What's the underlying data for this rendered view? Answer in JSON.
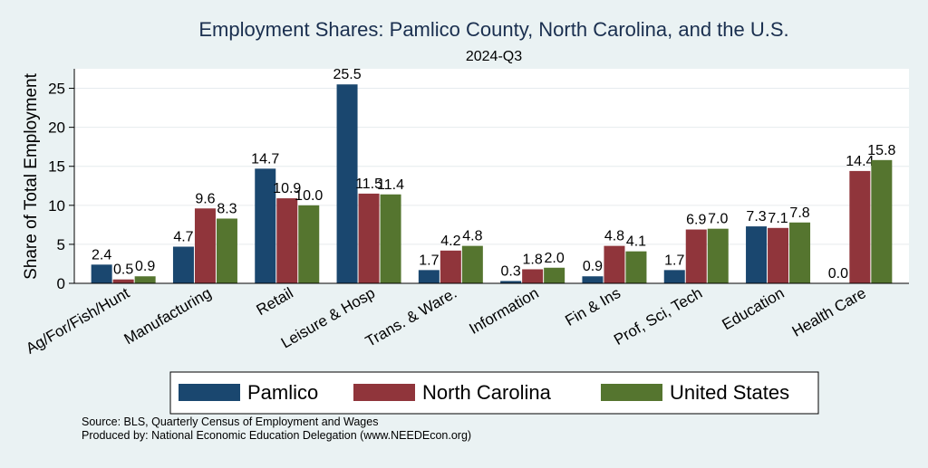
{
  "chart_data": {
    "type": "bar",
    "title": "Employment Shares: Pamlico County, North Carolina, and the U.S.",
    "subtitle": "2024-Q3",
    "xlabel": "",
    "ylabel": "Share of Total Employment",
    "ylim": [
      0,
      27.5
    ],
    "yticks": [
      0,
      5,
      10,
      15,
      20,
      25
    ],
    "grid": true,
    "legend_position": "bottom",
    "categories": [
      "Ag/For/Fish/Hunt",
      "Manufacturing",
      "Retail",
      "Leisure & Hosp",
      "Trans. & Ware.",
      "Information",
      "Fin & Ins",
      "Prof, Sci, Tech",
      "Education",
      "Health Care"
    ],
    "series": [
      {
        "name": "Pamlico",
        "color": "#1a476f",
        "values": [
          2.4,
          4.7,
          14.7,
          25.5,
          1.7,
          0.3,
          0.9,
          1.7,
          7.3,
          0.0
        ],
        "labels": [
          "2.4",
          "4.7",
          "14.7",
          "25.5",
          "1.7",
          "0.3",
          "0.9",
          "1.7",
          "7.3",
          "0.0"
        ]
      },
      {
        "name": "North Carolina",
        "color": "#90353b",
        "values": [
          0.5,
          9.6,
          10.9,
          11.5,
          4.2,
          1.8,
          4.8,
          6.9,
          7.1,
          14.4
        ],
        "labels": [
          "0.5",
          "9.6",
          "10.9",
          "11.5",
          "4.2",
          "1.8",
          "4.8",
          "6.9",
          "7.1",
          "14.4"
        ]
      },
      {
        "name": "United States",
        "color": "#55752f",
        "values": [
          0.9,
          8.3,
          10.0,
          11.4,
          4.8,
          2.0,
          4.1,
          7.0,
          7.8,
          15.8
        ],
        "labels": [
          "0.9",
          "8.3",
          "10.0",
          "11.4",
          "4.8",
          "2.0",
          "4.1",
          "7.0",
          "7.8",
          "15.8"
        ]
      }
    ]
  },
  "footer": {
    "source": "Source: BLS, Quarterly Census of Employment and Wages",
    "produced_by": "Produced by: National Economic Education Delegation (www.NEEDEcon.org)"
  }
}
